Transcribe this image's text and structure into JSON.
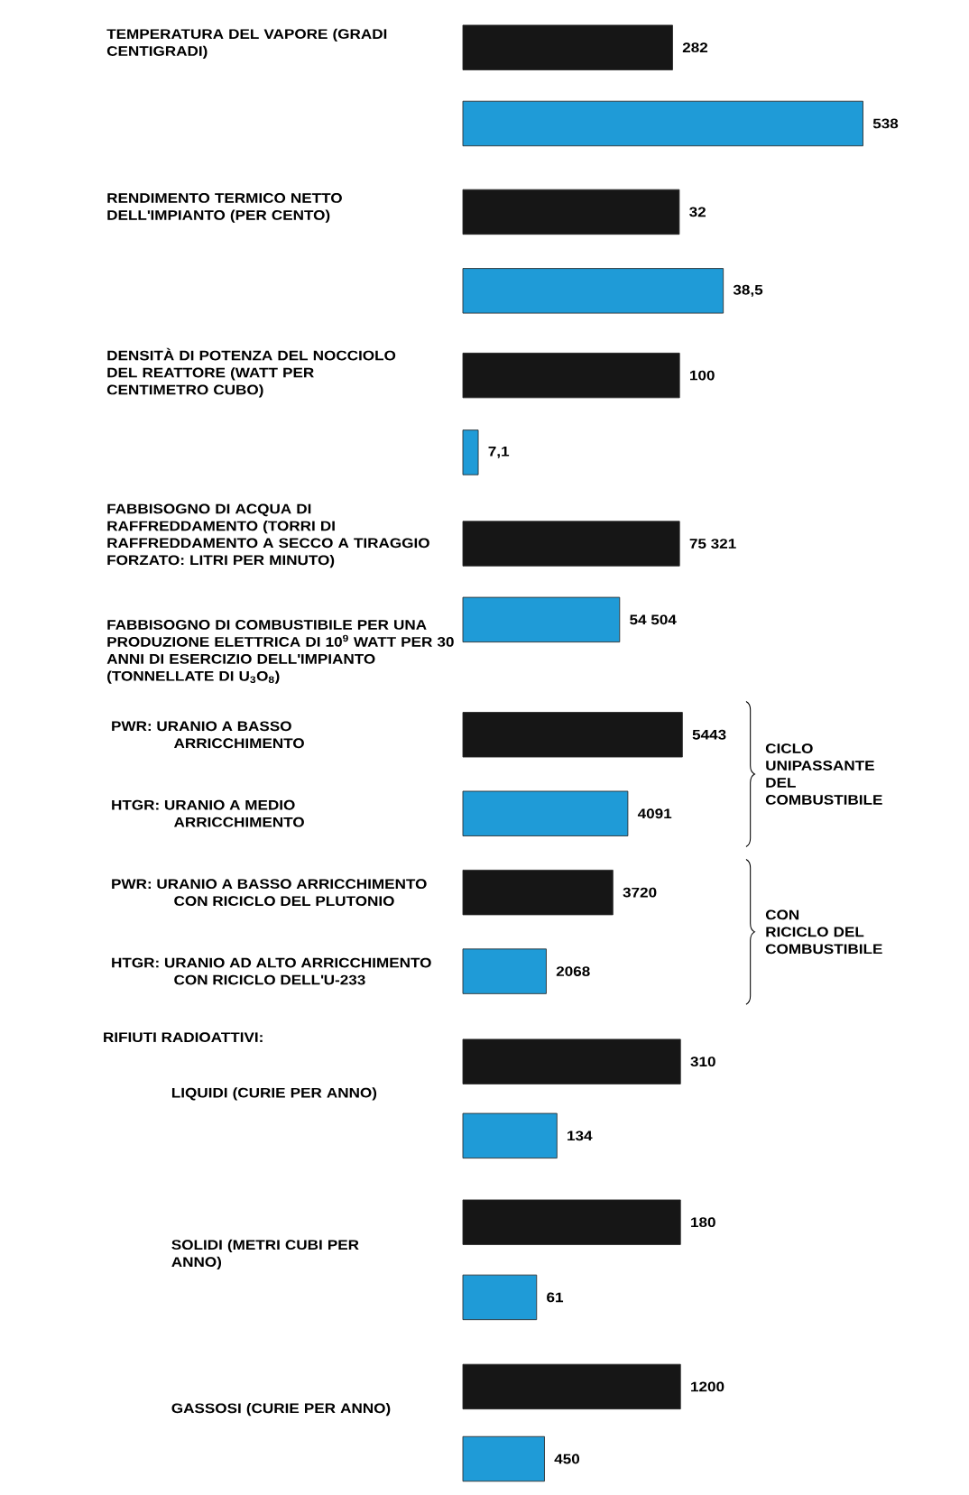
{
  "chart_data": [
    {
      "type": "bar",
      "orientation": "horizontal",
      "ylabel": "TEMPERATURA DEL VAPORE (GRADI CENTIGRADI)",
      "categories": [
        null,
        null
      ],
      "values": [
        282,
        538
      ],
      "colors": [
        "#161616",
        "#1f9bd7"
      ],
      "value_labels": [
        "282",
        "538"
      ],
      "tick_labels": false
    },
    {
      "type": "bar",
      "orientation": "horizontal",
      "ylabel": "RENDIMENTO TERMICO NETTO DELL'IMPIANTO (PER CENTO)",
      "categories": [
        null,
        null
      ],
      "values": [
        32,
        38.5
      ],
      "colors": [
        "#161616",
        "#1f9bd7"
      ],
      "value_labels": [
        "32",
        "38,5"
      ],
      "tick_labels": false
    },
    {
      "type": "bar",
      "orientation": "horizontal",
      "ylabel": "DENSITÀ DI POTENZA DEL NOCCIOLO DEL REATTORE (WATT PER CENTIMETRO CUBO)",
      "categories": [
        null,
        null
      ],
      "values": [
        100,
        7.1
      ],
      "colors": [
        "#161616",
        "#1f9bd7"
      ],
      "value_labels": [
        "100",
        "7,1"
      ],
      "tick_labels": false
    },
    {
      "type": "bar",
      "orientation": "horizontal",
      "ylabel": "FABBISOGNO DI ACQUA DI RAFFREDDAMENTO (TORRI DI RAFFREDDAMENTO A SECCO A TIRAGGIO FORZATO: LITRI PER MINUTO)",
      "categories": [
        null,
        null
      ],
      "values": [
        75321,
        54504
      ],
      "colors": [
        "#161616",
        "#1f9bd7"
      ],
      "value_labels": [
        "75 321",
        "54 504"
      ],
      "tick_labels": false
    },
    {
      "type": "bar",
      "orientation": "horizontal",
      "title": "FABBISOGNO DI COMBUSTIBILE PER UNA PRODUZIONE ELETTRICA DI 10$^{9}$ WATT PER 30 ANNI DI ESERCIZIO DELL'IMPIANTO (TONNELLATE DI U$_{3}$O$_{8}$)",
      "categories": [
        "PWR: URANIO A BASSO ARRICCHIMENTO",
        "HTGR: URANIO A MEDIO ARRICCHIMENTO",
        "PWR: URANIO A BASSO ARRICCHIMENTO CON RICICLO DEL PLUTONIO",
        "HTGR: URANIO AD ALTO ARRICCHIMENTO CON RICICLO DELL'U-233"
      ],
      "values": [
        5443,
        4091,
        3720,
        2068
      ],
      "colors": [
        "#161616",
        "#1f9bd7",
        "#161616",
        "#1f9bd7"
      ],
      "value_labels": [
        "5443",
        "4091",
        "3720",
        "2068"
      ],
      "tick_labels": "y",
      "annotations": [
        "CICLO UNIPASSANTE DEL COMBUSTIBILE",
        "CON RICICLO DEL COMBUSTIBILE"
      ]
    },
    {
      "type": "bar",
      "orientation": "horizontal",
      "ylabel": "LIQUIDI (CURIE PER ANNO)",
      "categories": [
        null,
        null
      ],
      "values": [
        310,
        134
      ],
      "colors": [
        "#161616",
        "#1f9bd7"
      ],
      "value_labels": [
        "310",
        "134"
      ],
      "tick_labels": false,
      "annotations": [
        "RIFIUTI RADIOATTIVI:"
      ]
    },
    {
      "type": "bar",
      "orientation": "horizontal",
      "ylabel": "SOLIDI (METRI CUBI PER ANNO)",
      "categories": [
        null,
        null
      ],
      "values": [
        180,
        61
      ],
      "colors": [
        "#161616",
        "#1f9bd7"
      ],
      "value_labels": [
        "180",
        "61"
      ],
      "tick_labels": false
    },
    {
      "type": "bar",
      "orientation": "horizontal",
      "ylabel": "GASSOSI (CURIE PER ANNO)",
      "categories": [
        null,
        null
      ],
      "values": [
        1200,
        450
      ],
      "colors": [
        "#161616",
        "#1f9bd7"
      ],
      "value_labels": [
        "1200",
        "450"
      ],
      "tick_labels": false
    }
  ]
}
